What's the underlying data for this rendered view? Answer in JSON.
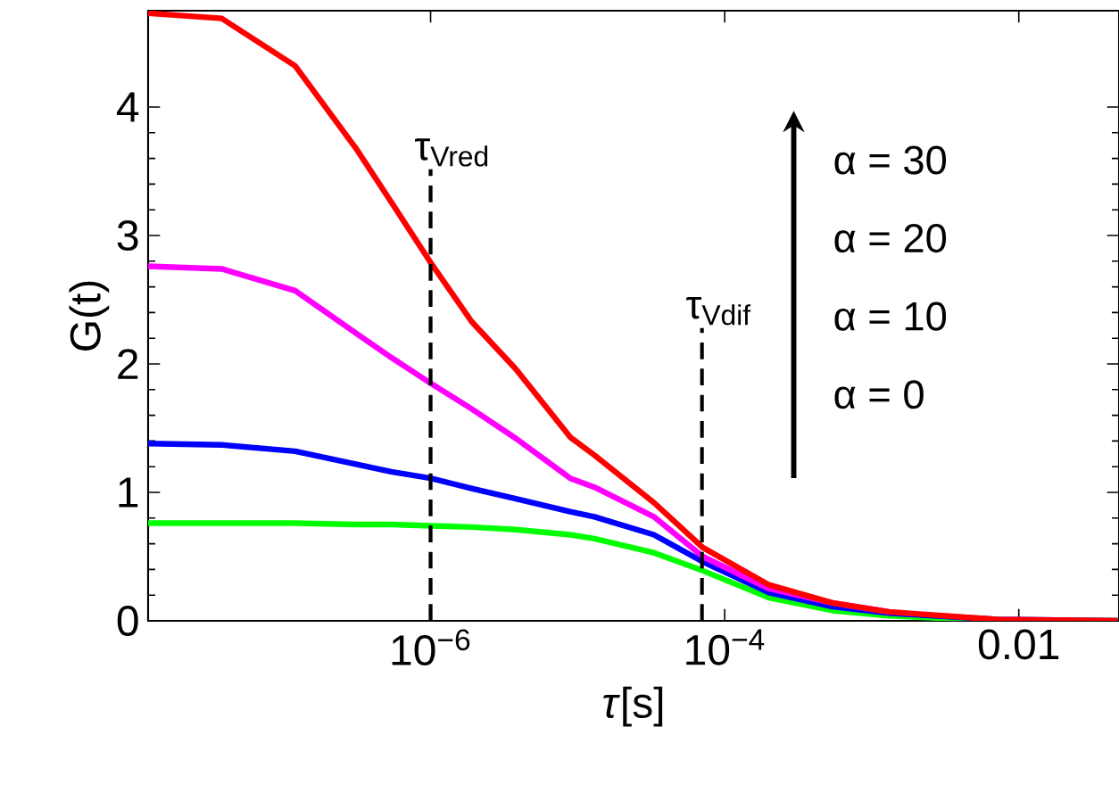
{
  "chart_data": {
    "type": "line",
    "xlabel": "*τ*[s]",
    "ylabel": "G(t)",
    "log": "x",
    "grid": false,
    "line_style": "solid",
    "marker": "none",
    "x": [
      1.2e-08,
      3.8e-08,
      1.2e-07,
      3.1e-07,
      5.4e-07,
      1e-06,
      1.9e-06,
      3.8e-06,
      8.9e-06,
      1.3e-05,
      3.3e-05,
      7.1e-05,
      0.0002,
      0.00054,
      0.0013,
      0.0071,
      0.047
    ],
    "series": [
      {
        "color": "#00ff00",
        "values": [
          0.76,
          0.76,
          0.76,
          0.75,
          0.75,
          0.74,
          0.73,
          0.71,
          0.67,
          0.64,
          0.53,
          0.39,
          0.18,
          0.08,
          0.04,
          0,
          0
        ]
      },
      {
        "color": "#0000ff",
        "values": [
          1.38,
          1.37,
          1.32,
          1.22,
          1.16,
          1.11,
          1.03,
          0.95,
          0.85,
          0.81,
          0.67,
          0.46,
          0.22,
          0.11,
          0.06,
          0.01,
          0
        ]
      },
      {
        "color": "#ff00ff",
        "values": [
          2.76,
          2.74,
          2.57,
          2.24,
          2.05,
          1.85,
          1.65,
          1.42,
          1.11,
          1.04,
          0.81,
          0.5,
          0.25,
          0.14,
          0.07,
          null,
          null
        ]
      },
      {
        "color": "#ff0000",
        "values": [
          4.73,
          4.69,
          4.32,
          3.68,
          3.26,
          2.79,
          2.33,
          1.96,
          1.43,
          1.29,
          0.92,
          0.57,
          0.28,
          0.14,
          0.07,
          0.01,
          0
        ]
      }
    ],
    "xlim": [
      1.2e-08,
      0.048
    ],
    "xticks": [
      {
        "value": 1e-06,
        "label": "10$^{−6}$"
      },
      {
        "value": 0.0001,
        "label": "10$^{−4}$"
      },
      0.01
    ],
    "ylim": [
      0,
      4.75
    ],
    "yticks": [
      0,
      1,
      2,
      3,
      4
    ],
    "ref_lines": [
      {
        "axis": "x",
        "value": 1e-06,
        "label": "τ$_{Vred}$",
        "color": "#000000",
        "line_style": "dashed"
      },
      {
        "axis": "x",
        "value": 7e-05,
        "label": "τ$_{Vdif}$",
        "color": "#000000",
        "line_style": "dashed"
      }
    ],
    "annotations": [
      "α = 30",
      "α = 20",
      "α = 10",
      "α = 0"
    ]
  }
}
